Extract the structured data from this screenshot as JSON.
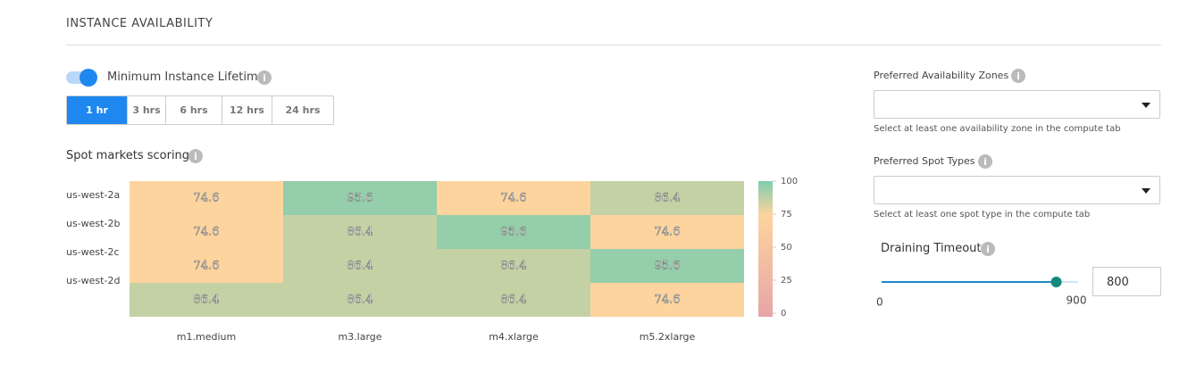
{
  "section_title": "INSTANCE AVAILABILITY",
  "lifetime": {
    "label": "Minimum Instance Lifetime",
    "enabled": true,
    "options": [
      "1 hr",
      "3 hrs",
      "6 hrs",
      "12 hrs",
      "24 hrs"
    ],
    "selected": 0
  },
  "chart_data": {
    "type": "heatmap",
    "title": "Spot markets scoring",
    "rows": [
      "us-west-2a",
      "us-west-2b",
      "us-west-2c",
      "us-west-2d"
    ],
    "columns": [
      "m1.medium",
      "m3.large",
      "m4.xlarge",
      "m5.2xlarge"
    ],
    "values": [
      [
        74.6,
        95.6,
        74.6,
        86.4
      ],
      [
        74.6,
        86.4,
        95.6,
        74.6
      ],
      [
        74.6,
        86.4,
        86.4,
        95.6
      ],
      [
        86.4,
        86.4,
        86.4,
        74.6
      ]
    ],
    "clim": [
      0,
      100
    ],
    "cticks": [
      0,
      25,
      50,
      75,
      100
    ],
    "colorscale": [
      [
        0,
        "#e6a5a7"
      ],
      [
        75,
        "#fdd49e"
      ],
      [
        100,
        "#7ecdad"
      ]
    ]
  },
  "availability_zones": {
    "label": "Preferred Availability Zones",
    "hint": "Select at least one availability zone in the compute tab"
  },
  "spot_types": {
    "label": "Preferred Spot Types",
    "hint": "Select at least one spot type in the compute tab"
  },
  "draining_timeout": {
    "label": "Draining Timeout",
    "min": 0,
    "max": 900,
    "value": 800
  }
}
